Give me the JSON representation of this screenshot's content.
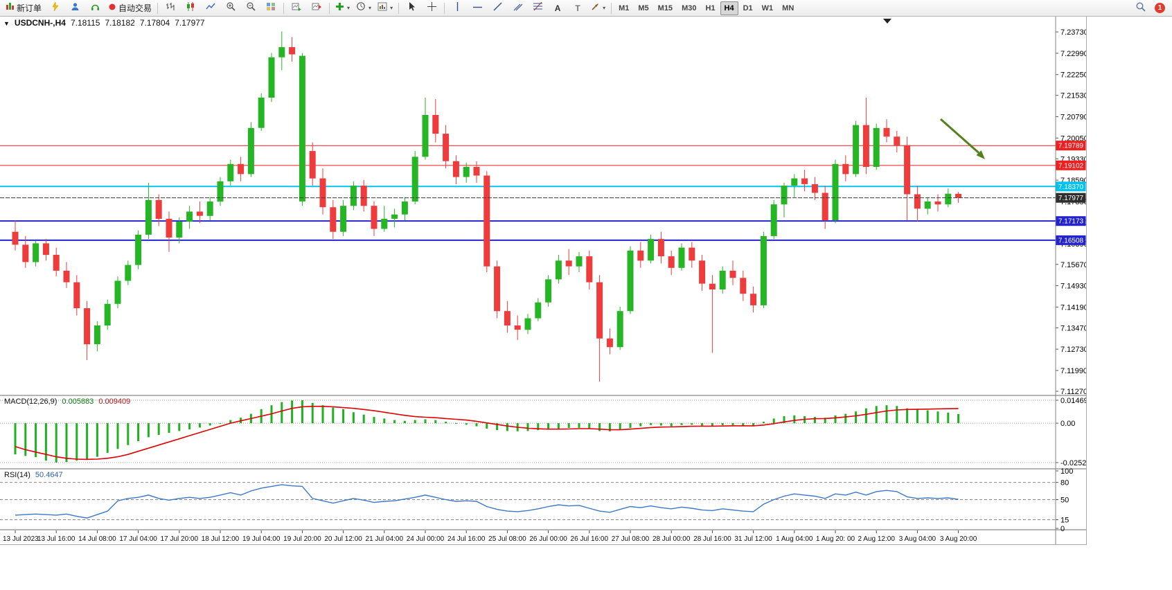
{
  "toolbar": {
    "new_order": {
      "label": "新订单"
    },
    "auto_trading": {
      "label": "自动交易"
    },
    "timeframes": {
      "items": [
        "M1",
        "M5",
        "M15",
        "M30",
        "H1",
        "H4",
        "D1",
        "W1",
        "MN"
      ],
      "active": "H4"
    },
    "notification": {
      "count": "1"
    },
    "icon_names": [
      "new-order-chart-icon",
      "lightning-icon",
      "profile-icon",
      "headset-icon",
      "autotrade-status-icon",
      "bar-chart-icon",
      "candlestick-chart-icon",
      "line-chart-icon",
      "zoom-in-icon",
      "zoom-out-icon",
      "tile-windows-icon",
      "auto-scroll-icon",
      "chart-shift-icon",
      "indicators-plus-icon",
      "periods-clock-icon",
      "templates-icon",
      "cursor-icon",
      "crosshair-icon",
      "vertical-line-icon",
      "horizontal-line-icon",
      "trendline-icon",
      "channel-icon",
      "fibonacci-icon",
      "text-icon",
      "label-icon",
      "arrows-icon",
      "search-icon"
    ]
  },
  "chart": {
    "title": {
      "symbol": "USDCNH-,H4",
      "open": "7.18115",
      "high": "7.18182",
      "low": "7.17804",
      "close": "7.17977"
    },
    "hlines": [
      {
        "label": "7.19789",
        "price": 7.19789,
        "color": "#f01e1e",
        "width": 1
      },
      {
        "label": "7.19102",
        "price": 7.19102,
        "color": "#f01e1e",
        "width": 1
      },
      {
        "label": "7.18370",
        "price": 7.1837,
        "color": "#00c3ef",
        "width": 2
      },
      {
        "label": "7.17173",
        "price": 7.17173,
        "color": "#2424cd",
        "width": 2
      },
      {
        "label": "7.16508",
        "price": 7.16508,
        "color": "#2424cd",
        "width": 2
      }
    ],
    "bid_line": {
      "label": "7.17977",
      "price": 7.17977,
      "color": "#3c3c3c"
    },
    "arrow_annotation": {
      "color": "#55801e"
    },
    "candle_up_color": "#25b525",
    "candle_down_color": "#ee3b3b"
  },
  "macd_panel": {
    "name": "MACD(12,26,9)",
    "value_main": "0.005883",
    "value_signal": "0.009409"
  },
  "rsi_panel": {
    "name": "RSI(14)",
    "value": "50.4647"
  },
  "chart_data": [
    {
      "type": "candlestick",
      "name": "USDCNH H4",
      "ylim": [
        7.1115,
        7.2426
      ],
      "y_tick_labels": [
        "7.23730",
        "7.22990",
        "7.22250",
        "7.21530",
        "7.20790",
        "7.20050",
        "7.19330",
        "7.18590",
        "7.17850",
        "7.17130",
        "7.16390",
        "7.15670",
        "7.14930",
        "7.14190",
        "7.13470",
        "7.12730",
        "7.11990",
        "7.11270"
      ],
      "x_tick_labels": [
        "13 Jul 2023",
        "13 Jul 16:00",
        "14 Jul 08:00",
        "17 Jul 04:00",
        "17 Jul 20:00",
        "18 Jul 12:00",
        "19 Jul 04:00",
        "19 Jul 20:00",
        "20 Jul 12:00",
        "21 Jul 04:00",
        "24 Jul 00:00",
        "24 Jul 16:00",
        "25 Jul 08:00",
        "26 Jul 00:00",
        "26 Jul 16:00",
        "27 Jul 08:00",
        "28 Jul 00:00",
        "28 Jul 16:00",
        "31 Jul 12:00",
        "1 Aug 04:00",
        "1 Aug 20: 00",
        "2 Aug 12:00",
        "3 Aug 04:00",
        "3 Aug 20:00"
      ],
      "x_label_step": 4,
      "ohlc": [
        [
          7.168,
          7.172,
          7.1615,
          7.1635
        ],
        [
          7.1635,
          7.1665,
          7.1555,
          7.1575
        ],
        [
          7.1575,
          7.165,
          7.156,
          7.164
        ],
        [
          7.164,
          7.1655,
          7.158,
          7.16
        ],
        [
          7.16,
          7.1625,
          7.1525,
          7.1545
        ],
        [
          7.1545,
          7.1575,
          7.1485,
          7.1505
        ],
        [
          7.1505,
          7.153,
          7.139,
          7.1415
        ],
        [
          7.1415,
          7.144,
          7.1235,
          7.129
        ],
        [
          7.129,
          7.137,
          7.1265,
          7.1355
        ],
        [
          7.1355,
          7.1445,
          7.134,
          7.143
        ],
        [
          7.143,
          7.1525,
          7.1415,
          7.151
        ],
        [
          7.151,
          7.158,
          7.1495,
          7.1565
        ],
        [
          7.1565,
          7.1685,
          7.155,
          7.167
        ],
        [
          7.167,
          7.185,
          7.1655,
          7.179
        ],
        [
          7.179,
          7.181,
          7.17,
          7.1725
        ],
        [
          7.1725,
          7.175,
          7.161,
          7.166
        ],
        [
          7.166,
          7.173,
          7.164,
          7.1715
        ],
        [
          7.1715,
          7.177,
          7.169,
          7.175
        ],
        [
          7.175,
          7.1785,
          7.171,
          7.1735
        ],
        [
          7.1735,
          7.18,
          7.172,
          7.1785
        ],
        [
          7.1785,
          7.187,
          7.177,
          7.1855
        ],
        [
          7.1855,
          7.193,
          7.184,
          7.1915
        ],
        [
          7.1915,
          7.194,
          7.1855,
          7.188
        ],
        [
          7.188,
          7.206,
          7.187,
          7.204
        ],
        [
          7.204,
          7.216,
          7.203,
          7.2145
        ],
        [
          7.2145,
          7.23,
          7.213,
          7.2285
        ],
        [
          7.2285,
          7.2375,
          7.224,
          7.232
        ],
        [
          7.232,
          7.2355,
          7.227,
          7.2295
        ],
        [
          7.1785,
          7.23,
          7.177,
          7.229
        ],
        [
          7.196,
          7.199,
          7.184,
          7.1865
        ],
        [
          7.1865,
          7.19,
          7.174,
          7.1765
        ],
        [
          7.1765,
          7.179,
          7.1655,
          7.168
        ],
        [
          7.168,
          7.179,
          7.1665,
          7.177
        ],
        [
          7.177,
          7.1855,
          7.1755,
          7.184
        ],
        [
          7.184,
          7.186,
          7.175,
          7.177
        ],
        [
          7.177,
          7.1785,
          7.1665,
          7.169
        ],
        [
          7.169,
          7.177,
          7.168,
          7.1725
        ],
        [
          7.1725,
          7.176,
          7.1695,
          7.174
        ],
        [
          7.174,
          7.18,
          7.172,
          7.1785
        ],
        [
          7.1785,
          7.196,
          7.1775,
          7.194
        ],
        [
          7.194,
          7.2145,
          7.193,
          7.2085
        ],
        [
          7.2085,
          7.214,
          7.199,
          7.202
        ],
        [
          7.202,
          7.205,
          7.19,
          7.1925
        ],
        [
          7.1925,
          7.1945,
          7.1845,
          7.187
        ],
        [
          7.187,
          7.192,
          7.185,
          7.1905
        ],
        [
          7.1905,
          7.1925,
          7.185,
          7.1875
        ],
        [
          7.1875,
          7.189,
          7.154,
          7.156
        ],
        [
          7.156,
          7.158,
          7.138,
          7.1405
        ],
        [
          7.1405,
          7.144,
          7.133,
          7.1355
        ],
        [
          7.1355,
          7.139,
          7.1305,
          7.134
        ],
        [
          7.134,
          7.1395,
          7.1325,
          7.138
        ],
        [
          7.138,
          7.145,
          7.137,
          7.1435
        ],
        [
          7.1435,
          7.153,
          7.142,
          7.1515
        ],
        [
          7.1515,
          7.16,
          7.15,
          7.158
        ],
        [
          7.158,
          7.162,
          7.153,
          7.156
        ],
        [
          7.156,
          7.161,
          7.154,
          7.1595
        ],
        [
          7.1595,
          7.1615,
          7.148,
          7.1505
        ],
        [
          7.1505,
          7.153,
          7.116,
          7.131
        ],
        [
          7.131,
          7.1345,
          7.1255,
          7.128
        ],
        [
          7.128,
          7.142,
          7.127,
          7.1405
        ],
        [
          7.1405,
          7.163,
          7.1395,
          7.1615
        ],
        [
          7.1615,
          7.1645,
          7.1555,
          7.158
        ],
        [
          7.158,
          7.167,
          7.157,
          7.1655
        ],
        [
          7.1655,
          7.168,
          7.157,
          7.1595
        ],
        [
          7.1595,
          7.1615,
          7.153,
          7.1555
        ],
        [
          7.1555,
          7.164,
          7.1545,
          7.1625
        ],
        [
          7.1625,
          7.1645,
          7.1555,
          7.158
        ],
        [
          7.158,
          7.16,
          7.1475,
          7.15
        ],
        [
          7.15,
          7.153,
          7.126,
          7.148
        ],
        [
          7.148,
          7.156,
          7.1465,
          7.1545
        ],
        [
          7.1545,
          7.158,
          7.1495,
          7.152
        ],
        [
          7.152,
          7.1545,
          7.144,
          7.1465
        ],
        [
          7.1465,
          7.149,
          7.14,
          7.1425
        ],
        [
          7.1425,
          7.168,
          7.1415,
          7.1665
        ],
        [
          7.1665,
          7.179,
          7.1655,
          7.1775
        ],
        [
          7.1775,
          7.185,
          7.173,
          7.184
        ],
        [
          7.184,
          7.188,
          7.18,
          7.1865
        ],
        [
          7.1865,
          7.1895,
          7.182,
          7.1845
        ],
        [
          7.1845,
          7.187,
          7.179,
          7.1815
        ],
        [
          7.1815,
          7.184,
          7.169,
          7.172
        ],
        [
          7.172,
          7.193,
          7.171,
          7.1915
        ],
        [
          7.1915,
          7.1945,
          7.1855,
          7.188
        ],
        [
          7.188,
          7.2065,
          7.187,
          7.205
        ],
        [
          7.205,
          7.2145,
          7.188,
          7.1905
        ],
        [
          7.1905,
          7.2055,
          7.1895,
          7.204
        ],
        [
          7.204,
          7.207,
          7.199,
          7.201
        ],
        [
          7.201,
          7.203,
          7.1955,
          7.198
        ],
        [
          7.198,
          7.201,
          7.172,
          7.181
        ],
        [
          7.181,
          7.184,
          7.1715,
          7.176
        ],
        [
          7.176,
          7.18,
          7.174,
          7.1785
        ],
        [
          7.1785,
          7.181,
          7.175,
          7.1775
        ],
        [
          7.1775,
          7.183,
          7.1765,
          7.1812
        ],
        [
          7.18115,
          7.18182,
          7.17804,
          7.17977
        ]
      ]
    },
    {
      "type": "bar",
      "name": "MACD(12,26,9)",
      "ylim": [
        -0.028786,
        0.017352
      ],
      "y_tick_values": [
        0.014691,
        0,
        -0.02524
      ],
      "y_tick_labels": [
        "0.014691",
        "0.00",
        "-0.02524"
      ],
      "values": [
        -0.02,
        -0.021,
        -0.0218,
        -0.024,
        -0.0252,
        -0.0248,
        -0.024,
        -0.0232,
        -0.0215,
        -0.019,
        -0.0165,
        -0.014,
        -0.0115,
        -0.009,
        -0.0075,
        -0.0062,
        -0.005,
        -0.004,
        -0.0028,
        -0.0015,
        0.0,
        0.002,
        0.0035,
        0.006,
        0.009,
        0.0115,
        0.0135,
        0.0145,
        0.0147,
        0.013,
        0.0115,
        0.01,
        0.009,
        0.007,
        0.0055,
        0.004,
        0.003,
        0.002,
        0.0015,
        0.002,
        0.0025,
        0.002,
        0.001,
        0.0,
        -0.001,
        -0.002,
        -0.0035,
        -0.0045,
        -0.005,
        -0.0052,
        -0.005,
        -0.0045,
        -0.004,
        -0.0035,
        -0.003,
        -0.003,
        -0.0035,
        -0.005,
        -0.0052,
        -0.0042,
        -0.003,
        -0.002,
        -0.0012,
        -0.0015,
        -0.002,
        -0.0012,
        -0.001,
        -0.0015,
        -0.002,
        -0.0013,
        -0.0013,
        -0.0016,
        -0.002,
        0.001,
        0.003,
        0.0045,
        0.005,
        0.0045,
        0.004,
        0.0035,
        0.005,
        0.006,
        0.0075,
        0.0095,
        0.011,
        0.0115,
        0.011,
        0.0095,
        0.0088,
        0.0082,
        0.0075,
        0.0068,
        0.005883
      ],
      "signal_line": [
        -0.015,
        -0.017,
        -0.0185,
        -0.02,
        -0.0215,
        -0.0225,
        -0.023,
        -0.0232,
        -0.023,
        -0.0225,
        -0.0215,
        -0.02,
        -0.018,
        -0.016,
        -0.014,
        -0.012,
        -0.01,
        -0.008,
        -0.006,
        -0.004,
        -0.002,
        0.0,
        0.0015,
        0.003,
        0.0045,
        0.006,
        0.0078,
        0.0095,
        0.0105,
        0.0108,
        0.0108,
        0.0105,
        0.01,
        0.0095,
        0.0088,
        0.008,
        0.007,
        0.006,
        0.005,
        0.0042,
        0.0038,
        0.0035,
        0.003,
        0.0025,
        0.002,
        0.0012,
        0.0002,
        -0.0008,
        -0.0018,
        -0.0026,
        -0.0032,
        -0.0036,
        -0.0038,
        -0.0038,
        -0.0037,
        -0.0035,
        -0.0035,
        -0.0038,
        -0.0042,
        -0.0042,
        -0.0038,
        -0.0033,
        -0.0028,
        -0.0025,
        -0.0024,
        -0.0022,
        -0.002,
        -0.0019,
        -0.0019,
        -0.0018,
        -0.0017,
        -0.0017,
        -0.0017,
        -0.0012,
        -0.0003,
        0.0008,
        0.0018,
        0.0025,
        0.0029,
        0.003,
        0.0034,
        0.004,
        0.0047,
        0.0057,
        0.0068,
        0.0078,
        0.0085,
        0.0088,
        0.0089,
        0.009,
        0.0092,
        0.0093,
        0.009409
      ],
      "bar_color": "#21b021",
      "signal_color": "#e00000"
    },
    {
      "type": "line",
      "name": "RSI(14)",
      "ylim": [
        0,
        100
      ],
      "levels": [
        80,
        50,
        15
      ],
      "y_tick_values": [
        100,
        80,
        50,
        15,
        0
      ],
      "y_tick_labels": [
        "100",
        "80",
        "50",
        "15",
        "0"
      ],
      "line_color": "#3a78c9",
      "values": [
        23,
        24,
        25,
        24,
        23,
        25,
        21,
        18,
        24,
        30,
        48,
        52,
        54,
        58,
        52,
        49,
        52,
        54,
        52,
        54,
        58,
        62,
        58,
        65,
        70,
        73,
        76,
        74,
        73,
        52,
        48,
        44,
        48,
        52,
        49,
        45,
        47,
        48,
        51,
        54,
        58,
        54,
        50,
        47,
        48,
        47,
        38,
        33,
        30,
        29,
        31,
        34,
        38,
        41,
        39,
        40,
        35,
        30,
        28,
        33,
        38,
        36,
        39,
        36,
        34,
        37,
        35,
        32,
        31,
        34,
        32,
        30,
        29,
        42,
        50,
        56,
        60,
        58,
        56,
        52,
        60,
        58,
        63,
        58,
        64,
        66,
        64,
        55,
        52,
        53,
        52,
        53,
        50.4647
      ]
    }
  ]
}
